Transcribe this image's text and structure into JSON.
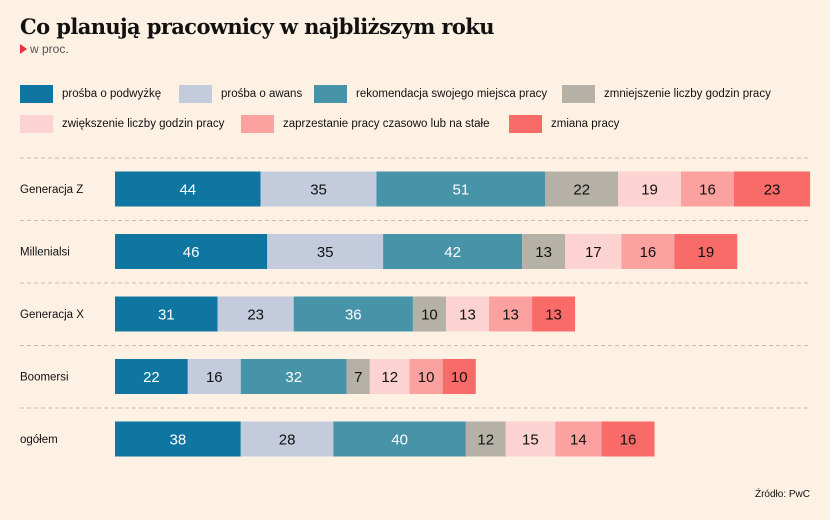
{
  "title": "Co planują pracownicy w najbliższym roku",
  "subtitle": "w proc.",
  "source": "Źródło: PwC",
  "icons": {
    "subtitle_marker": "triangle-right-icon"
  },
  "chart_data": {
    "type": "bar",
    "orientation": "horizontal",
    "stacked": true,
    "title": "Co planują pracownicy w najbliższym roku",
    "subtitle": "w proc.",
    "legend_position": "top",
    "grid": false,
    "categories": [
      "Generacja Z",
      "Millenialsi",
      "Generacja X",
      "Boomersi",
      "ogółem"
    ],
    "series": [
      {
        "name": "prośba o podwyżkę",
        "color": "#0f76a2",
        "text_color": "#ffffff",
        "values": [
          44,
          46,
          31,
          22,
          38
        ]
      },
      {
        "name": "prośba o awans",
        "color": "#c3cbdc",
        "text_color": "#111111",
        "values": [
          35,
          35,
          23,
          16,
          28
        ]
      },
      {
        "name": "rekomendacja swojego miejsca pracy",
        "color": "#4793a8",
        "text_color": "#ffffff",
        "values": [
          51,
          42,
          36,
          32,
          40
        ]
      },
      {
        "name": "zmniejszenie liczby godzin pracy",
        "color": "#b5b1a7",
        "text_color": "#111111",
        "values": [
          22,
          13,
          10,
          7,
          12
        ]
      },
      {
        "name": "zwiększenie liczby godzin pracy",
        "color": "#fcd3d0",
        "text_color": "#111111",
        "values": [
          19,
          17,
          13,
          12,
          15
        ]
      },
      {
        "name": "zaprzestanie pracy czasowo lub na stałe",
        "color": "#fba2a0",
        "text_color": "#111111",
        "values": [
          16,
          16,
          13,
          10,
          14
        ]
      },
      {
        "name": "zmiana pracy",
        "color": "#f86b69",
        "text_color": "#111111",
        "values": [
          23,
          19,
          13,
          10,
          16
        ]
      }
    ]
  }
}
